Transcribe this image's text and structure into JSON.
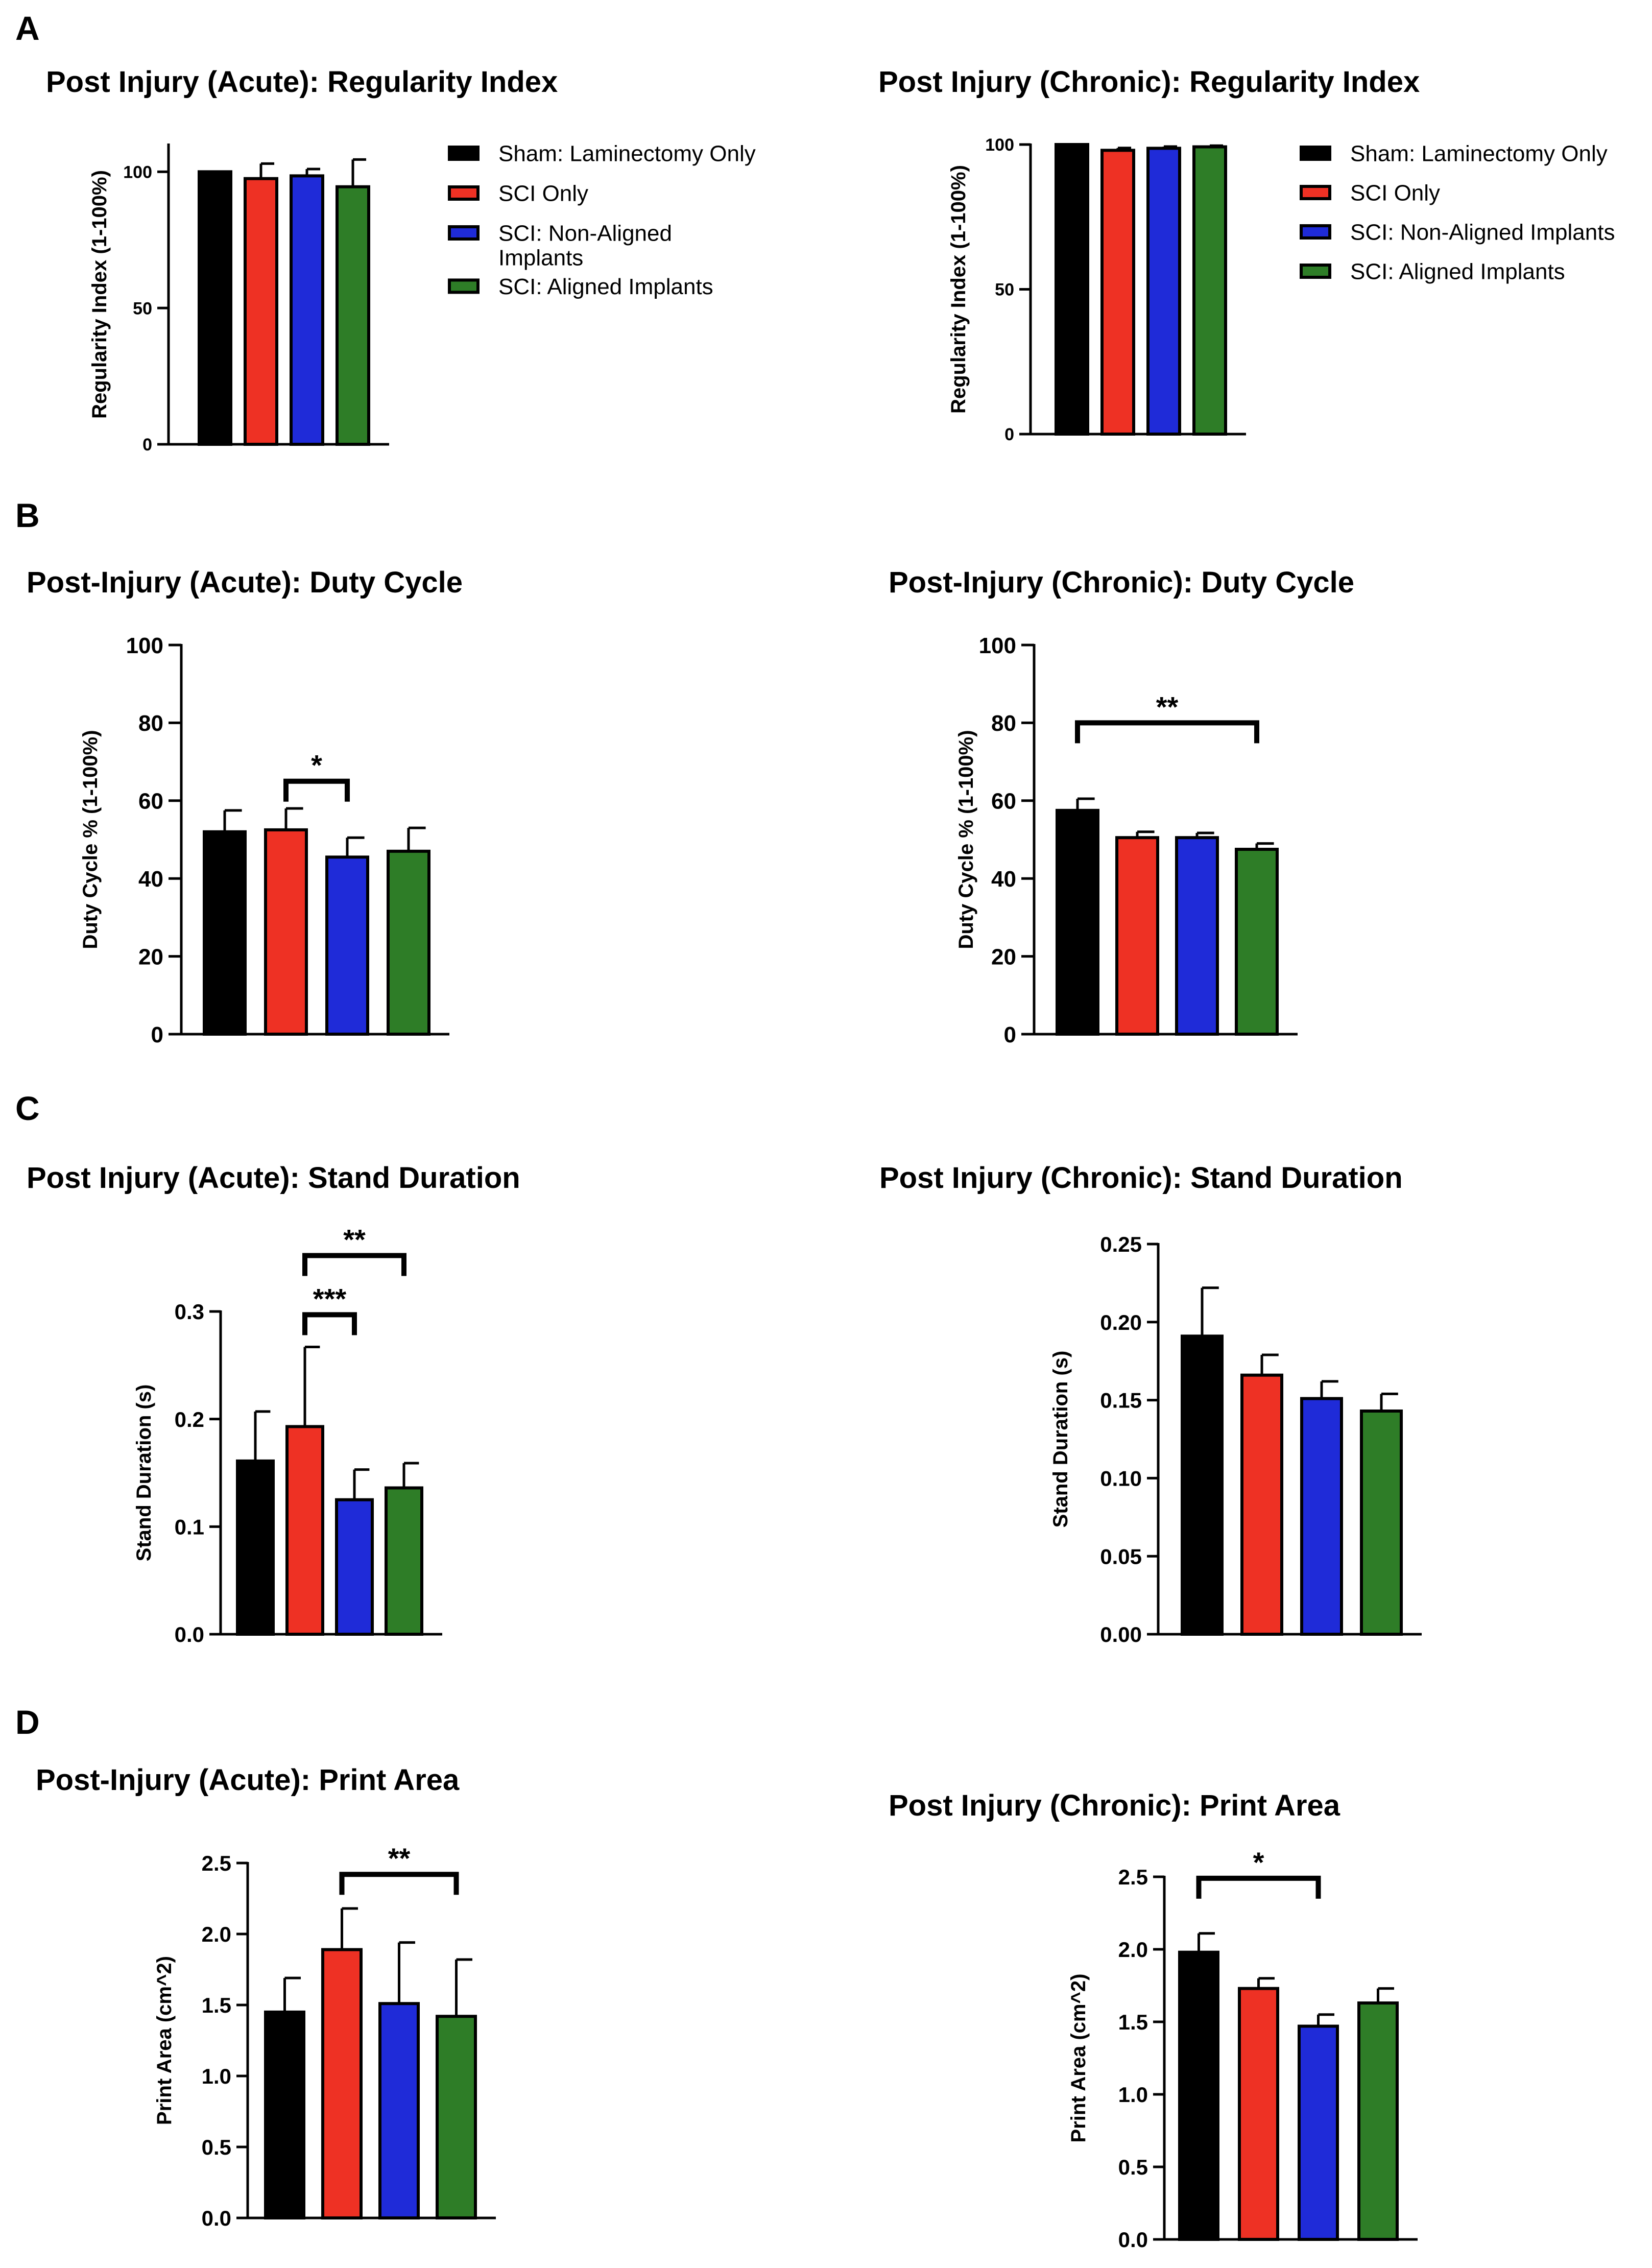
{
  "figure": {
    "panel_letters": [
      "A",
      "B",
      "C",
      "D"
    ],
    "groups": [
      "Sham: Laminectomy Only",
      "SCI Only",
      "SCI: Non-Aligned Implants",
      "SCI: Aligned Implants"
    ],
    "colors": [
      "#000000",
      "#ee3124",
      "#1f2bd8",
      "#2e7d27"
    ]
  },
  "chart_data": [
    {
      "id": "A-acute",
      "type": "bar",
      "title": "Post Injury (Acute): Regularity Index",
      "xlabel": "",
      "ylabel": "Regularity Index (1-100%)",
      "ylim": [
        0,
        110
      ],
      "ticks": [
        0,
        50,
        100
      ],
      "tick_labels": [
        "0",
        "50",
        "100"
      ],
      "categories": [
        "Sham: Laminectomy Only",
        "SCI Only",
        "SCI: Non-Aligned Implants",
        "SCI: Aligned Implants"
      ],
      "values": [
        100,
        97.5,
        98.5,
        94.5
      ],
      "errors": [
        0,
        5.5,
        2.5,
        10
      ],
      "legend": {
        "position": "right",
        "entries": [
          "Sham: Laminectomy Only",
          "SCI Only",
          "SCI: Non-Aligned\nImplants",
          "SCI: Aligned Implants"
        ]
      },
      "significance": []
    },
    {
      "id": "A-chronic",
      "type": "bar",
      "title": "Post Injury (Chronic): Regularity Index",
      "xlabel": "",
      "ylabel": "Regularity Index (1-100%)",
      "ylim": [
        0,
        100
      ],
      "ticks": [
        0,
        50,
        100
      ],
      "tick_labels": [
        "0",
        "50",
        "100"
      ],
      "categories": [
        "Sham: Laminectomy Only",
        "SCI Only",
        "SCI: Non-Aligned Implants",
        "SCI: Aligned Implants"
      ],
      "values": [
        100,
        98,
        98.7,
        99.2
      ],
      "errors": [
        0,
        0.8,
        0.6,
        0.4
      ],
      "legend": {
        "position": "right",
        "entries": [
          "Sham: Laminectomy Only",
          "SCI Only",
          "SCI: Non-Aligned Implants",
          "SCI: Aligned Implants"
        ]
      },
      "significance": []
    },
    {
      "id": "B-acute",
      "type": "bar",
      "title": "Post-Injury (Acute): Duty Cycle",
      "xlabel": "",
      "ylabel": "Duty Cycle % (1-100%)",
      "ylim": [
        0,
        100
      ],
      "ticks": [
        0,
        20,
        40,
        60,
        80,
        100
      ],
      "tick_labels": [
        "0",
        "20",
        "40",
        "60",
        "80",
        "100"
      ],
      "categories": [
        "Sham: Laminectomy Only",
        "SCI Only",
        "SCI: Non-Aligned Implants",
        "SCI: Aligned Implants"
      ],
      "values": [
        52,
        52.5,
        45.5,
        47
      ],
      "errors": [
        5.5,
        5.5,
        5,
        6
      ],
      "significance": [
        {
          "from": 1,
          "to": 2,
          "y": 65,
          "label": "*"
        }
      ]
    },
    {
      "id": "B-chronic",
      "type": "bar",
      "title": "Post-Injury (Chronic): Duty Cycle",
      "xlabel": "",
      "ylabel": "Duty Cycle % (1-100%)",
      "ylim": [
        0,
        100
      ],
      "ticks": [
        0,
        20,
        40,
        60,
        80,
        100
      ],
      "tick_labels": [
        "0",
        "20",
        "40",
        "60",
        "80",
        "100"
      ],
      "categories": [
        "Sham: Laminectomy Only",
        "SCI Only",
        "SCI: Non-Aligned Implants",
        "SCI: Aligned Implants"
      ],
      "values": [
        57.5,
        50.5,
        50.5,
        47.5
      ],
      "errors": [
        3,
        1.5,
        1.2,
        1.5
      ],
      "significance": [
        {
          "from": 0,
          "to": 3,
          "y": 80,
          "label": "**"
        }
      ]
    },
    {
      "id": "C-acute",
      "type": "bar",
      "title": "Post Injury (Acute): Stand Duration",
      "xlabel": "",
      "ylabel": "Stand Duration (s)",
      "ylim": [
        0,
        0.3
      ],
      "ticks": [
        0,
        0.1,
        0.2,
        0.3
      ],
      "tick_labels": [
        "0.0",
        "0.1",
        "0.2",
        "0.3"
      ],
      "categories": [
        "Sham: Laminectomy Only",
        "SCI Only",
        "SCI: Non-Aligned Implants",
        "SCI: Aligned Implants"
      ],
      "values": [
        0.161,
        0.193,
        0.125,
        0.136
      ],
      "errors": [
        0.046,
        0.074,
        0.028,
        0.023
      ],
      "significance": [
        {
          "from": 1,
          "to": 2,
          "y": 0.297,
          "label": "***"
        },
        {
          "from": 1,
          "to": 3,
          "y": 0.352,
          "label": "**"
        }
      ]
    },
    {
      "id": "C-chronic",
      "type": "bar",
      "title": "Post Injury (Chronic): Stand Duration",
      "xlabel": "",
      "ylabel": "Stand Duration (s)",
      "ylim": [
        0,
        0.25
      ],
      "ticks": [
        0,
        0.05,
        0.1,
        0.15,
        0.2,
        0.25
      ],
      "tick_labels": [
        "0.00",
        "0.05",
        "0.10",
        "0.15",
        "0.20",
        "0.25"
      ],
      "categories": [
        "Sham: Laminectomy Only",
        "SCI Only",
        "SCI: Non-Aligned Implants",
        "SCI: Aligned Implants"
      ],
      "values": [
        0.191,
        0.166,
        0.151,
        0.143
      ],
      "errors": [
        0.031,
        0.013,
        0.011,
        0.011
      ],
      "significance": []
    },
    {
      "id": "D-acute",
      "type": "bar",
      "title": "Post-Injury (Acute): Print Area",
      "xlabel": "",
      "ylabel": "Print Area (cm^2)",
      "ylim": [
        0,
        2.5
      ],
      "ticks": [
        0,
        0.5,
        1,
        1.5,
        2,
        2.5
      ],
      "tick_labels": [
        "0.0",
        "0.5",
        "1.0",
        "1.5",
        "2.0",
        "2.5"
      ],
      "categories": [
        "Sham: Laminectomy Only",
        "SCI Only",
        "SCI: Non-Aligned Implants",
        "SCI: Aligned Implants"
      ],
      "values": [
        1.45,
        1.89,
        1.51,
        1.42
      ],
      "errors": [
        0.24,
        0.29,
        0.43,
        0.4
      ],
      "significance": [
        {
          "from": 1,
          "to": 3,
          "y": 2.42,
          "label": "**"
        }
      ]
    },
    {
      "id": "D-chronic",
      "type": "bar",
      "title": "Post Injury (Chronic): Print Area",
      "xlabel": "",
      "ylabel": "Print Area (cm^2)",
      "ylim": [
        0,
        2.5
      ],
      "ticks": [
        0,
        0.5,
        1,
        1.5,
        2,
        2.5
      ],
      "tick_labels": [
        "0.0",
        "0.5",
        "1.0",
        "1.5",
        "2.0",
        "2.5"
      ],
      "categories": [
        "Sham: Laminectomy Only",
        "SCI Only",
        "SCI: Non-Aligned Implants",
        "SCI: Aligned Implants"
      ],
      "values": [
        1.98,
        1.73,
        1.47,
        1.63
      ],
      "errors": [
        0.13,
        0.07,
        0.08,
        0.1
      ],
      "significance": [
        {
          "from": 0,
          "to": 2,
          "y": 2.49,
          "label": "*"
        }
      ]
    }
  ]
}
